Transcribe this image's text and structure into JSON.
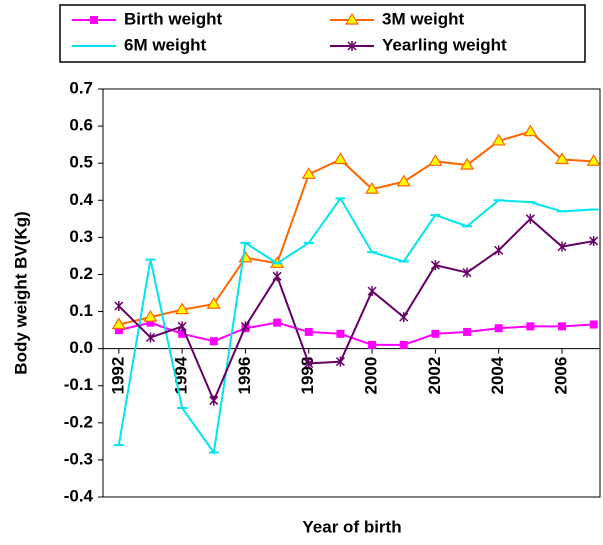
{
  "chart_data": {
    "type": "line",
    "y_label": "Body weight BV(Kg)",
    "x_label": "Year of birth",
    "x": [
      1992,
      1993,
      1994,
      1995,
      1996,
      1997,
      1998,
      1999,
      2000,
      2001,
      2002,
      2003,
      2004,
      2005,
      2006,
      2007
    ],
    "xlim": [
      1991.5,
      2007.2
    ],
    "xticks": [
      1992,
      1994,
      1996,
      1998,
      2000,
      2002,
      2004,
      2006
    ],
    "ylim": [
      -0.4,
      0.7
    ],
    "yticks": [
      0.7,
      0.6,
      0.5,
      0.4,
      0.3,
      0.2,
      0.1,
      {
        "value": 0,
        "label": "0.0"
      },
      -0.1,
      -0.2,
      -0.3,
      -0.4
    ],
    "grid": false,
    "legend": "top",
    "series": [
      {
        "name": "Birth weight",
        "color": "#ff00ff",
        "marker": "square",
        "values": [
          0.05,
          0.07,
          0.04,
          0.02,
          0.055,
          0.07,
          0.045,
          0.04,
          0.01,
          0.01,
          0.04,
          0.045,
          0.055,
          0.06,
          0.06,
          0.065
        ]
      },
      {
        "name": "3M weight",
        "color": "#ff6600",
        "marker": "triangle",
        "values": [
          0.065,
          0.085,
          0.105,
          0.12,
          0.245,
          0.23,
          0.47,
          0.51,
          0.43,
          0.45,
          0.505,
          0.495,
          0.56,
          0.585,
          0.51,
          0.505
        ]
      },
      {
        "name": "6M weight",
        "color": "#00e5ee",
        "marker": "dash",
        "values": [
          -0.26,
          0.24,
          -0.16,
          -0.28,
          0.285,
          0.23,
          0.285,
          0.405,
          0.26,
          0.235,
          0.36,
          0.33,
          0.4,
          0.395,
          0.37,
          0.375
        ]
      },
      {
        "name": "Yearling weight",
        "color": "#660066",
        "marker": "star",
        "values": [
          0.115,
          0.03,
          0.06,
          -0.14,
          0.06,
          0.195,
          -0.04,
          -0.035,
          0.155,
          0.085,
          0.225,
          0.205,
          0.265,
          0.35,
          0.275,
          0.29
        ]
      }
    ]
  }
}
